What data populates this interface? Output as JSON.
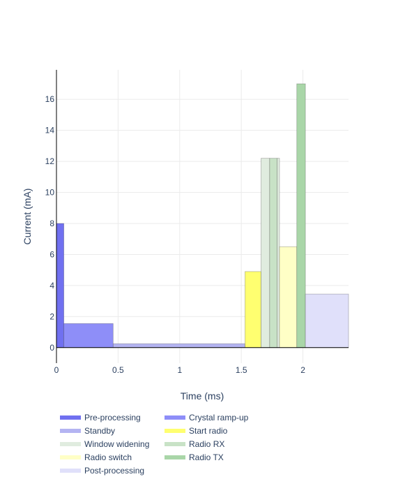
{
  "chart_data": {
    "type": "area",
    "xlabel": "Time (ms)",
    "ylabel": "Current (mA)",
    "xlim": [
      0,
      2.37
    ],
    "ylim": [
      -1,
      17.9
    ],
    "x_ticks": [
      0,
      0.5,
      1,
      1.5,
      2
    ],
    "x_tick_labels": [
      "0",
      "0.5",
      "1",
      "1.5",
      "2"
    ],
    "y_ticks": [
      0,
      2,
      4,
      6,
      8,
      10,
      12,
      14,
      16
    ],
    "y_tick_labels": [
      "0",
      "2",
      "4",
      "6",
      "8",
      "10",
      "12",
      "14",
      "16"
    ],
    "grid": true,
    "legend_position": "bottom-left",
    "series": [
      {
        "name": "Pre-processing",
        "color": "#7070f0",
        "fill_opacity": 1.0,
        "segments": [
          {
            "x0": 0.0,
            "x1": 0.06,
            "y": 8.0
          }
        ]
      },
      {
        "name": "Crystal ramp-up",
        "color": "#8e8ef8",
        "fill_opacity": 1.0,
        "segments": [
          {
            "x0": 0.06,
            "x1": 0.46,
            "y": 1.55
          }
        ]
      },
      {
        "name": "Standby",
        "color": "#b4b4f2",
        "fill_opacity": 1.0,
        "segments": [
          {
            "x0": 0.46,
            "x1": 1.53,
            "y": 0.25
          }
        ]
      },
      {
        "name": "Start radio",
        "color": "#ffff70",
        "fill_opacity": 1.0,
        "segments": [
          {
            "x0": 1.53,
            "x1": 1.66,
            "y": 4.9
          }
        ]
      },
      {
        "name": "Window widening",
        "color": "#e0ecdf",
        "fill_opacity": 1.0,
        "segments": [
          {
            "x0": 1.66,
            "x1": 1.73,
            "y": 12.2
          },
          {
            "x0": 1.79,
            "x1": 1.81,
            "y": 12.2
          }
        ]
      },
      {
        "name": "Radio RX",
        "color": "#c8e2c6",
        "fill_opacity": 1.0,
        "segments": [
          {
            "x0": 1.73,
            "x1": 1.79,
            "y": 12.2
          }
        ]
      },
      {
        "name": "Radio switch",
        "color": "#ffffc6",
        "fill_opacity": 1.0,
        "segments": [
          {
            "x0": 1.81,
            "x1": 1.95,
            "y": 6.5
          }
        ]
      },
      {
        "name": "Radio TX",
        "color": "#a9d6a8",
        "fill_opacity": 1.0,
        "segments": [
          {
            "x0": 1.95,
            "x1": 2.02,
            "y": 17.0
          }
        ]
      },
      {
        "name": "Post-processing",
        "color": "#e0e0fa",
        "fill_opacity": 1.0,
        "segments": [
          {
            "x0": 2.02,
            "x1": 2.37,
            "y": 3.45
          }
        ]
      }
    ]
  }
}
